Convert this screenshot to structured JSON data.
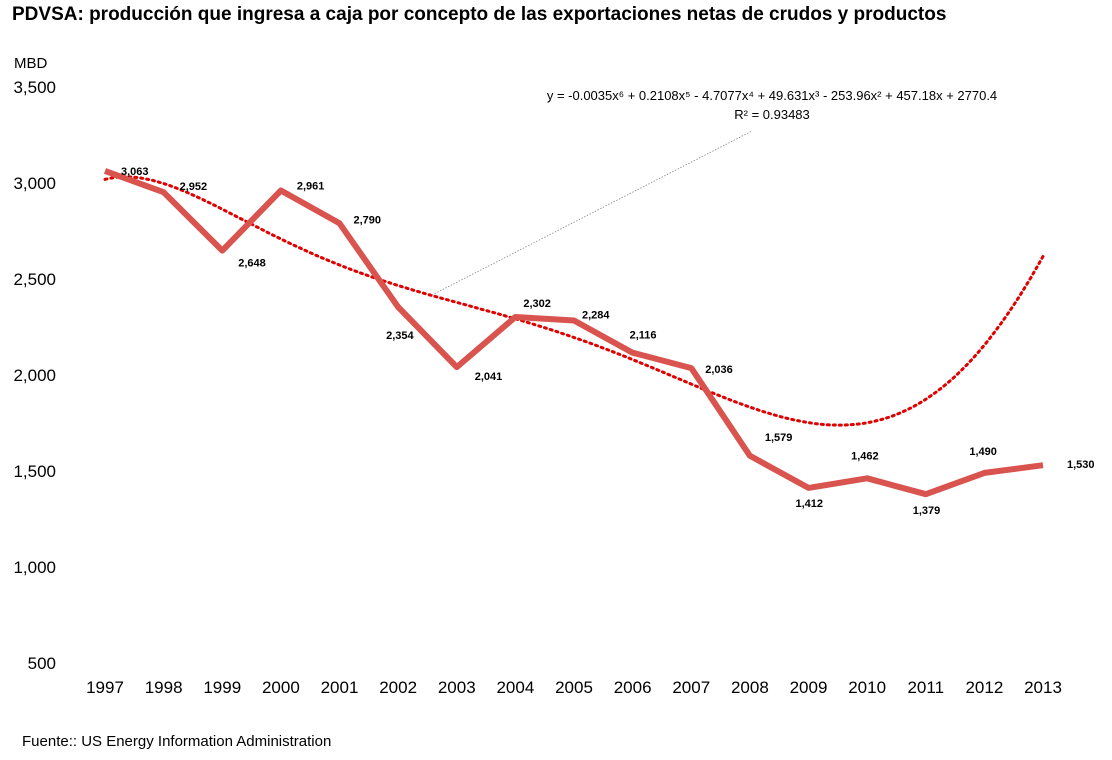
{
  "chart_data": {
    "type": "line",
    "title": "PDVSA: producción que ingresa a caja por concepto de las  exportaciones netas de crudos y productos",
    "ylabel": "MBD",
    "xlabel": "",
    "ylim": [
      500,
      3500
    ],
    "yticks": [
      "500",
      "1,000",
      "1,500",
      "2,000",
      "2,500",
      "3,000",
      "3,500"
    ],
    "yticks_values": [
      500,
      1000,
      1500,
      2000,
      2500,
      3000,
      3500
    ],
    "categories": [
      "1997",
      "1998",
      "1999",
      "2000",
      "2001",
      "2002",
      "2003",
      "2004",
      "2005",
      "2006",
      "2007",
      "2008",
      "2009",
      "2010",
      "2011",
      "2012",
      "2013"
    ],
    "series": [
      {
        "values": [
          3063,
          2952,
          2648,
          2961,
          2790,
          2354,
          2041,
          2302,
          2284,
          2116,
          2036,
          1579,
          1412,
          1462,
          1379,
          1490,
          1530
        ],
        "labels": [
          "3,063",
          "2,952",
          "2,648",
          "2,961",
          "2,790",
          "2,354",
          "2,041",
          "2,302",
          "2,284",
          "2,116",
          "2,036",
          "1,579",
          "1,412",
          "1,462",
          "1,379",
          "1,490",
          "1,530"
        ],
        "color": "#d9534f"
      }
    ],
    "trendline": {
      "type": "polynomial",
      "order": 6,
      "color": "#e00000",
      "equation": "y = -0.0035x⁶ + 0.2108x⁵ - 4.7077x⁴ + 49.631x³ - 253.96x² + 457.18x + 2770.4",
      "r_squared": "R² = 0.93483",
      "coefficients": [
        -0.0035,
        0.2108,
        -4.7077,
        49.631,
        -253.96,
        457.18,
        2770.4
      ]
    },
    "grid": false,
    "legend": "none"
  },
  "source": "Fuente:: US Energy Information Administration"
}
